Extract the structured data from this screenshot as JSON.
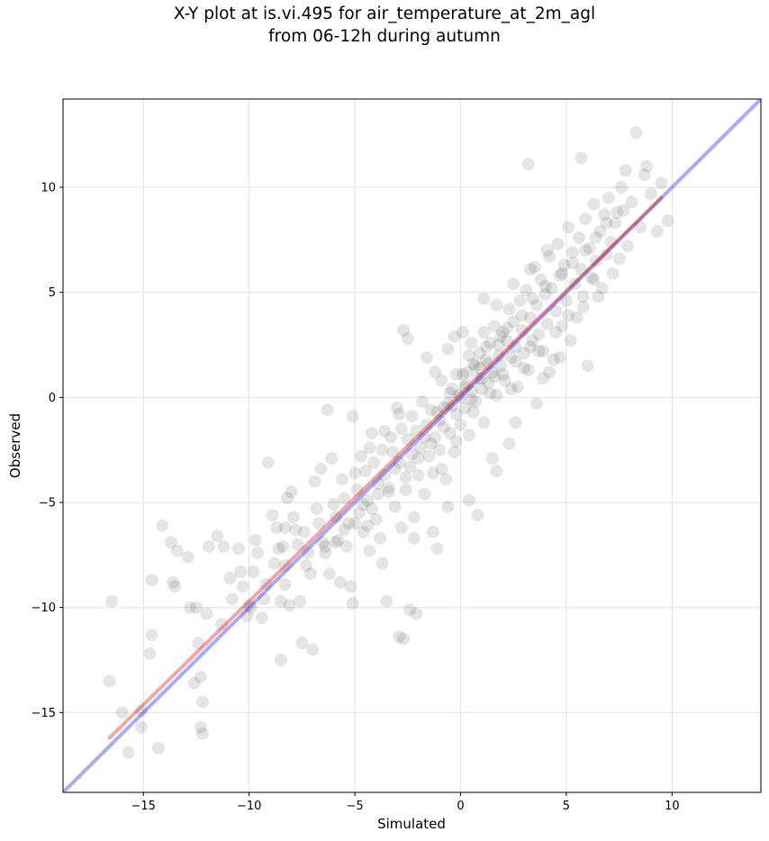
{
  "chart_data": {
    "type": "scatter",
    "title_line1": "X-Y plot at is.vi.495 for air_temperature_at_2m_agl",
    "title_line2": "from 06-12h during autumn",
    "xlabel": "Simulated",
    "ylabel": "Observed",
    "xlim": [
      -18.8,
      14.2
    ],
    "ylim": [
      -18.8,
      14.2
    ],
    "xticks": [
      -15,
      -10,
      -5,
      0,
      5,
      10
    ],
    "yticks": [
      -15,
      -10,
      -5,
      0,
      5,
      10
    ],
    "xtick_labels": [
      "−15",
      "−10",
      "−5",
      "0",
      "5",
      "10"
    ],
    "ytick_labels": [
      "−15",
      "−10",
      "−5",
      "0",
      "5",
      "10"
    ],
    "grid": true,
    "colors": {
      "points": "#000000",
      "one_to_one": "#0000dd",
      "fit": "#dd0000"
    },
    "one_to_one_line": {
      "x": [
        -18.8,
        14.2
      ],
      "y": [
        -18.8,
        14.2
      ]
    },
    "fit_line": {
      "x": [
        -16.6,
        9.5
      ],
      "y": [
        -16.2,
        9.5
      ]
    },
    "points": [
      [
        -16.5,
        -9.7
      ],
      [
        -16.6,
        -13.5
      ],
      [
        -16,
        -15
      ],
      [
        -15.7,
        -16.9
      ],
      [
        -15.1,
        -14.9
      ],
      [
        -15.1,
        -15.7
      ],
      [
        -14.7,
        -12.2
      ],
      [
        -14.6,
        -11.3
      ],
      [
        -14.6,
        -8.7
      ],
      [
        -14.3,
        -16.7
      ],
      [
        -14.1,
        -6.1
      ],
      [
        -13.7,
        -6.9
      ],
      [
        -13.6,
        -8.8
      ],
      [
        -13.5,
        -9
      ],
      [
        -13.4,
        -7.3
      ],
      [
        -12.9,
        -7.6
      ],
      [
        -12.8,
        -10
      ],
      [
        -12.6,
        -13.6
      ],
      [
        -12.5,
        -10
      ],
      [
        -12.4,
        -11.7
      ],
      [
        -12.3,
        -13.3
      ],
      [
        -12.3,
        -15.7
      ],
      [
        -12.2,
        -14.5
      ],
      [
        -12.2,
        -16
      ],
      [
        -12,
        -10.3
      ],
      [
        -11.9,
        -7.1
      ],
      [
        -11.5,
        -6.6
      ],
      [
        -11.2,
        -7.1
      ],
      [
        -10.9,
        -8.6
      ],
      [
        -10.8,
        -9.6
      ],
      [
        -10.5,
        -7.2
      ],
      [
        -10.4,
        -8.3
      ],
      [
        -10.3,
        -9
      ],
      [
        -10,
        -9.9
      ],
      [
        -9.9,
        -10
      ],
      [
        -9.8,
        -8.3
      ],
      [
        -9.7,
        -6.8
      ],
      [
        -9.6,
        -7.4
      ],
      [
        -9.4,
        -10.5
      ],
      [
        -9.2,
        -8.9
      ],
      [
        -9.1,
        -3.1
      ],
      [
        -8.9,
        -5.6
      ],
      [
        -8.8,
        -7.9
      ],
      [
        -8.7,
        -6.2
      ],
      [
        -8.6,
        -7.2
      ],
      [
        -8.5,
        -12.5
      ],
      [
        -8.5,
        -9.7
      ],
      [
        -8.4,
        -7.1
      ],
      [
        -8.3,
        -6.2
      ],
      [
        -8.3,
        -8
      ],
      [
        -8.2,
        -4.8
      ],
      [
        -8.1,
        -9.9
      ],
      [
        -8,
        -4.5
      ],
      [
        -7.9,
        -5.7
      ],
      [
        -7.8,
        -6.3
      ],
      [
        -7.7,
        -7
      ],
      [
        -7.6,
        -9.7
      ],
      [
        -7.5,
        -11.7
      ],
      [
        -7.4,
        -6.4
      ],
      [
        -7.2,
        -7.4
      ],
      [
        -7.1,
        -8.4
      ],
      [
        -7,
        -12
      ],
      [
        -6.9,
        -4
      ],
      [
        -6.8,
        -5.3
      ],
      [
        -6.7,
        -6
      ],
      [
        -6.6,
        -3.4
      ],
      [
        -6.5,
        -6.9
      ],
      [
        -6.4,
        -7.4
      ],
      [
        -6.3,
        -0.6
      ],
      [
        -6.2,
        -8.4
      ],
      [
        -6.1,
        -2.9
      ],
      [
        -6,
        -5.1
      ],
      [
        -5.9,
        -5.7
      ],
      [
        -5.8,
        -6.8
      ],
      [
        -5.7,
        -8.8
      ],
      [
        -5.6,
        -3.9
      ],
      [
        -5.5,
        -4.8
      ],
      [
        -5.4,
        -7.1
      ],
      [
        -5.3,
        -6
      ],
      [
        -5.2,
        -9
      ],
      [
        -5.1,
        -9.8
      ],
      [
        -5.1,
        -0.9
      ],
      [
        -5,
        -3.6
      ],
      [
        -4.9,
        -4.4
      ],
      [
        -4.8,
        -5.5
      ],
      [
        -4.7,
        -2.8
      ],
      [
        -4.6,
        -6.4
      ],
      [
        -4.5,
        -3.5
      ],
      [
        -4.4,
        -4.9
      ],
      [
        -4.3,
        -7.3
      ],
      [
        -4.2,
        -1.7
      ],
      [
        -4.1,
        -3.1
      ],
      [
        -4,
        -5.8
      ],
      [
        -3.9,
        -4.1
      ],
      [
        -3.8,
        -6.7
      ],
      [
        -3.7,
        -2.5
      ],
      [
        -3.6,
        -3.7
      ],
      [
        -3.5,
        -9.7
      ],
      [
        -3.4,
        -4.3
      ],
      [
        -3.3,
        -1.9
      ],
      [
        -3.2,
        -2.6
      ],
      [
        -3.1,
        -5.2
      ],
      [
        -3,
        -0.5
      ],
      [
        -2.9,
        -3.1
      ],
      [
        -2.8,
        -6.2
      ],
      [
        -2.8,
        -1.5
      ],
      [
        -2.7,
        -11.5
      ],
      [
        -2.6,
        -4.4
      ],
      [
        -2.5,
        -2
      ],
      [
        -2.4,
        -3.3
      ],
      [
        -2.3,
        -0.9
      ],
      [
        -2.2,
        -5.7
      ],
      [
        -2.1,
        -1.6
      ],
      [
        -2,
        -3.7
      ],
      [
        -1.9,
        -2.4
      ],
      [
        -1.8,
        -0.2
      ],
      [
        -1.7,
        -4.6
      ],
      [
        -1.6,
        -1.3
      ],
      [
        -1.5,
        -2.8
      ],
      [
        -1.4,
        -0.6
      ],
      [
        -1.3,
        -3.6
      ],
      [
        -1.2,
        -1.9
      ],
      [
        -1.1,
        -0.7
      ],
      [
        -1,
        -2.5
      ],
      [
        -0.9,
        0.8
      ],
      [
        -0.8,
        -1.4
      ],
      [
        -0.7,
        -3.9
      ],
      [
        -0.6,
        -0.3
      ],
      [
        -0.5,
        -1.7
      ],
      [
        -0.4,
        0.4
      ],
      [
        -0.3,
        -2.6
      ],
      [
        -0.2,
        -0.8
      ],
      [
        -0.1,
        0.1
      ],
      [
        0,
        -1.3
      ],
      [
        0.1,
        1.1
      ],
      [
        0.2,
        -0.5
      ],
      [
        0.3,
        0.6
      ],
      [
        0.4,
        -1.8
      ],
      [
        0.5,
        0.3
      ],
      [
        0.6,
        1.6
      ],
      [
        0.7,
        -0.2
      ],
      [
        0.8,
        0.9
      ],
      [
        0.9,
        2.1
      ],
      [
        1,
        0.4
      ],
      [
        1.1,
        -1.2
      ],
      [
        1.2,
        1.8
      ],
      [
        1.3,
        0.7
      ],
      [
        1.4,
        2.6
      ],
      [
        1.5,
        1.2
      ],
      [
        1.6,
        3.4
      ],
      [
        1.7,
        0.1
      ],
      [
        1.8,
        2
      ],
      [
        1.9,
        1.5
      ],
      [
        2,
        3.1
      ],
      [
        2.1,
        0.8
      ],
      [
        2.2,
        2.7
      ],
      [
        2.3,
        4.2
      ],
      [
        2.4,
        1.9
      ],
      [
        2.5,
        3.6
      ],
      [
        2.6,
        2.4
      ],
      [
        2.7,
        0.5
      ],
      [
        2.8,
        4.6
      ],
      [
        2.9,
        3.2
      ],
      [
        3,
        2.1
      ],
      [
        3.1,
        5.1
      ],
      [
        3.2,
        1.3
      ],
      [
        3.3,
        3.8
      ],
      [
        3.4,
        2.7
      ],
      [
        3.5,
        6.2
      ],
      [
        3.6,
        4.4
      ],
      [
        3.7,
        3
      ],
      [
        3.8,
        5.6
      ],
      [
        3.9,
        2.2
      ],
      [
        4,
        4.9
      ],
      [
        4.1,
        3.5
      ],
      [
        4.2,
        6.7
      ],
      [
        4.3,
        5.2
      ],
      [
        4.4,
        1.8
      ],
      [
        4.5,
        4.1
      ],
      [
        4.6,
        7.3
      ],
      [
        4.7,
        5.8
      ],
      [
        4.8,
        3.4
      ],
      [
        4.9,
        6.3
      ],
      [
        5,
        4.6
      ],
      [
        5.1,
        8.1
      ],
      [
        5.2,
        2.7
      ],
      [
        5.3,
        6.9
      ],
      [
        5.4,
        5.4
      ],
      [
        5.5,
        3.8
      ],
      [
        5.6,
        7.6
      ],
      [
        5.7,
        6.1
      ],
      [
        5.8,
        4.3
      ],
      [
        5.9,
        8.5
      ],
      [
        6,
        1.5
      ],
      [
        6.1,
        7.1
      ],
      [
        6.2,
        5.7
      ],
      [
        6.3,
        9.2
      ],
      [
        6.4,
        6.5
      ],
      [
        6.5,
        4.8
      ],
      [
        6.6,
        7.9
      ],
      [
        6.7,
        5.2
      ],
      [
        6.8,
        8.7
      ],
      [
        6.9,
        6.8
      ],
      [
        7,
        9.5
      ],
      [
        7.1,
        7.4
      ],
      [
        7.2,
        5.9
      ],
      [
        7.3,
        8.3
      ],
      [
        7.5,
        6.6
      ],
      [
        7.6,
        10
      ],
      [
        7.7,
        8.9
      ],
      [
        7.9,
        7.2
      ],
      [
        8.1,
        9.3
      ],
      [
        8.3,
        12.6
      ],
      [
        8.5,
        8.1
      ],
      [
        8.7,
        10.6
      ],
      [
        9,
        9.7
      ],
      [
        9.3,
        7.9
      ],
      [
        9.5,
        10.2
      ],
      [
        9.8,
        8.4
      ],
      [
        3.2,
        11.1
      ],
      [
        5.7,
        11.4
      ],
      [
        7.8,
        10.8
      ],
      [
        8.8,
        11
      ],
      [
        1.1,
        4.7
      ],
      [
        0.5,
        2.6
      ],
      [
        -0.3,
        2.9
      ],
      [
        -1.6,
        1.9
      ],
      [
        -2.5,
        2.8
      ],
      [
        -2.7,
        3.2
      ],
      [
        -0.9,
        -3.4
      ],
      [
        0.8,
        -5.6
      ],
      [
        0.4,
        -4.9
      ],
      [
        -1.1,
        -7.2
      ],
      [
        -2.2,
        -6.7
      ],
      [
        1.5,
        -2.9
      ],
      [
        2.6,
        -1.2
      ],
      [
        3.6,
        -0.3
      ],
      [
        3.9,
        0.9
      ],
      [
        4.7,
        1.9
      ],
      [
        -3.7,
        -7.9
      ],
      [
        -2.4,
        -10.1
      ],
      [
        -2.1,
        -10.3
      ],
      [
        -2.9,
        -11.4
      ],
      [
        -4.4,
        -6.1
      ],
      [
        -0.6,
        -5.2
      ],
      [
        -1.3,
        -6.4
      ],
      [
        1.7,
        -3.5
      ],
      [
        2.3,
        -2.2
      ],
      [
        4.2,
        1.2
      ],
      [
        -0.2,
        -2.1
      ],
      [
        0.6,
        -0.7
      ],
      [
        1.4,
        0.2
      ],
      [
        2,
        1.1
      ],
      [
        2.6,
        1.7
      ],
      [
        3.3,
        2.4
      ],
      [
        1.9,
        2.9
      ],
      [
        1.2,
        2.4
      ],
      [
        0.7,
        1.5
      ],
      [
        0.2,
        0.5
      ],
      [
        -0.4,
        -0.4
      ],
      [
        -1,
        -1.1
      ],
      [
        -1.7,
        -1.9
      ],
      [
        -2.3,
        -2.7
      ],
      [
        -3.1,
        -3.4
      ],
      [
        -3.9,
        -4.6
      ],
      [
        -4.6,
        -5.1
      ],
      [
        -5.5,
        -6.3
      ],
      [
        -6.4,
        -7.1
      ],
      [
        -7.3,
        -8
      ],
      [
        -8.3,
        -8.9
      ],
      [
        -9.3,
        -9.6
      ],
      [
        -10.1,
        -10.4
      ],
      [
        -11.3,
        -10.8
      ],
      [
        1.0,
        0.9
      ],
      [
        1.3,
        1.6
      ],
      [
        0.9,
        1.4
      ],
      [
        1.6,
        1.0
      ],
      [
        0.3,
        1.2
      ],
      [
        -0.5,
        0.2
      ],
      [
        -0.8,
        -0.5
      ],
      [
        0.0,
        0.0
      ],
      [
        0.5,
        -0.1
      ],
      [
        1.8,
        2.5
      ],
      [
        2.2,
        3.3
      ],
      [
        2.9,
        3.9
      ],
      [
        3.4,
        4.7
      ],
      [
        4.0,
        5.3
      ],
      [
        4.8,
        5.9
      ],
      [
        5.3,
        6.4
      ],
      [
        5.9,
        7.0
      ],
      [
        6.4,
        7.6
      ],
      [
        6.9,
        8.3
      ],
      [
        7.4,
        8.8
      ],
      [
        -1.4,
        -2.2
      ],
      [
        -2.0,
        -2.9
      ],
      [
        -2.6,
        -3.8
      ],
      [
        -3.4,
        -4.5
      ],
      [
        -4.2,
        -5.3
      ],
      [
        -5.0,
        -6.0
      ],
      [
        -5.9,
        -6.9
      ],
      [
        1.1,
        3.1
      ],
      [
        0.4,
        2.0
      ],
      [
        -0.2,
        1.1
      ],
      [
        2.4,
        0.4
      ],
      [
        3.0,
        1.4
      ],
      [
        3.7,
        2.2
      ],
      [
        4.5,
        3.1
      ],
      [
        5.1,
        3.9
      ],
      [
        5.8,
        4.8
      ],
      [
        6.3,
        5.6
      ],
      [
        -2.9,
        -0.8
      ],
      [
        -3.6,
        -1.6
      ],
      [
        -4.3,
        -2.4
      ],
      [
        -1.2,
        1.2
      ],
      [
        -0.6,
        2.3
      ],
      [
        0.1,
        3.1
      ],
      [
        1.7,
        4.4
      ],
      [
        2.5,
        5.4
      ],
      [
        3.3,
        6.1
      ],
      [
        4.1,
        7.0
      ]
    ]
  }
}
